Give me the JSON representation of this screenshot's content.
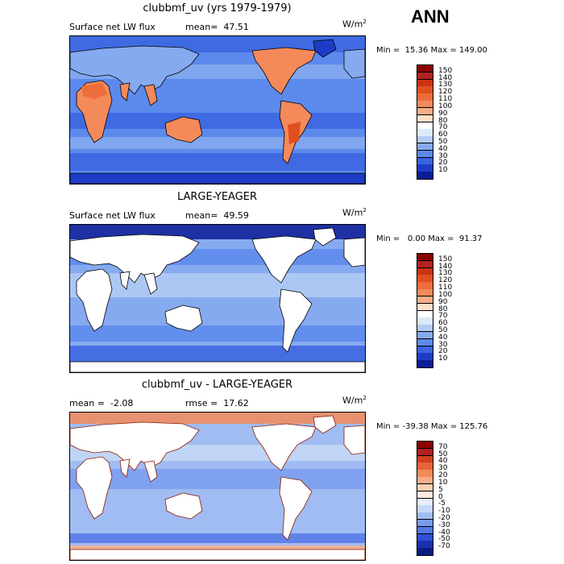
{
  "season": "ANN",
  "panels": [
    {
      "title": "clubbmf_uv (yrs 1979-1979)",
      "left_label": "Surface net LW flux",
      "right_label": "mean=  47.51",
      "units": "W/m",
      "units_sup": "2",
      "minmax": "Min =  15.36 Max = 149.00",
      "map_kind": "full",
      "colorbar": {
        "labels": [
          "150",
          "140",
          "130",
          "120",
          "110",
          "100",
          "90",
          "80",
          "70",
          "60",
          "50",
          "40",
          "30",
          "20",
          "10"
        ],
        "colors": [
          "#8b0000",
          "#b22222",
          "#cc3311",
          "#e0501e",
          "#ee6d3c",
          "#f48a5a",
          "#f8ad88",
          "#fde0c8",
          "#ffffff",
          "#dceafa",
          "#b4ccf4",
          "#86aaf0",
          "#5c8aec",
          "#3a64e0",
          "#1c3cc8",
          "#0a1c96"
        ]
      }
    },
    {
      "title": "LARGE-YEAGER",
      "left_label": "Surface net LW flux",
      "right_label": "mean=  49.59",
      "units": "W/m",
      "units_sup": "2",
      "minmax": "Min =   0.00 Max =  91.37",
      "map_kind": "ocean",
      "colorbar": {
        "labels": [
          "150",
          "140",
          "130",
          "120",
          "110",
          "100",
          "90",
          "80",
          "70",
          "60",
          "50",
          "40",
          "30",
          "20",
          "10"
        ],
        "colors": [
          "#8b0000",
          "#b22222",
          "#cc3311",
          "#e0501e",
          "#ee6d3c",
          "#f48a5a",
          "#f8ad88",
          "#fde0c8",
          "#ffffff",
          "#dceafa",
          "#b4ccf4",
          "#86aaf0",
          "#5c8aec",
          "#3a64e0",
          "#1c3cc8",
          "#0a1c96"
        ]
      }
    },
    {
      "title": "clubbmf_uv - LARGE-YEAGER",
      "left_label": "mean =  -2.08",
      "right_label": "rmse =  17.62",
      "units": "W/m",
      "units_sup": "2",
      "minmax": "Min = -39.38 Max = 125.76",
      "map_kind": "diff",
      "colorbar": {
        "labels": [
          "70",
          "50",
          "40",
          "30",
          "20",
          "10",
          "5",
          "0",
          "-5",
          "-10",
          "-20",
          "-30",
          "-40",
          "-50",
          "-70"
        ],
        "colors": [
          "#8b0000",
          "#b22222",
          "#d0401c",
          "#e8643a",
          "#f48a5a",
          "#f8ad88",
          "#fcd0b4",
          "#fdebe0",
          "#e6eefa",
          "#c6d8f6",
          "#a0bcf2",
          "#7a9cee",
          "#5478e6",
          "#3050d4",
          "#1a30b0",
          "#0a1c80"
        ]
      }
    }
  ]
}
